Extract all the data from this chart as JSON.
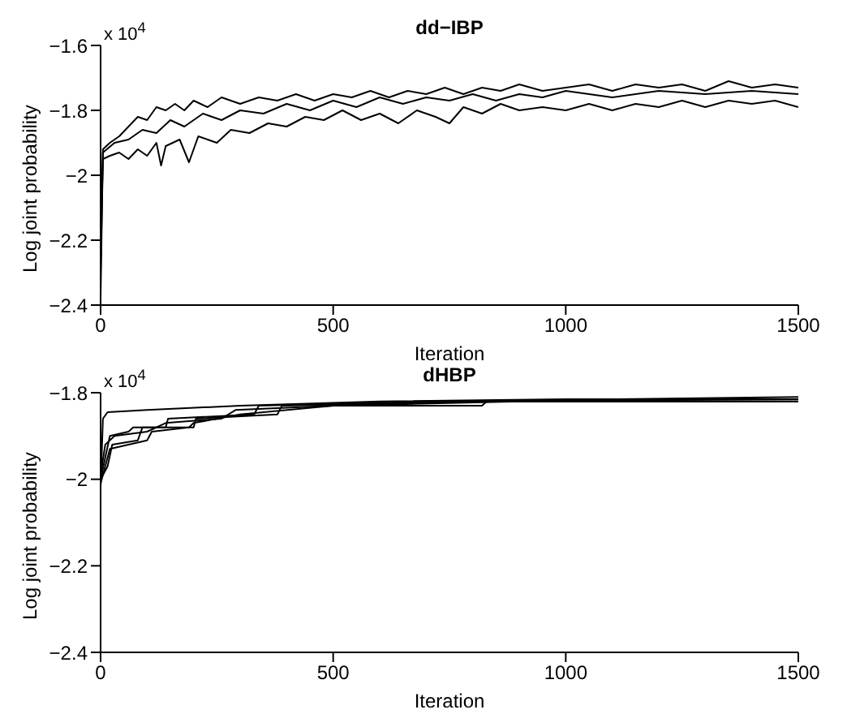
{
  "chart_data": [
    {
      "type": "line",
      "title": "dd−IBP",
      "xlabel": "Iteration",
      "ylabel": "Log joint probability",
      "annotations": [
        "x 10$^{4}$"
      ],
      "xlim": [
        0,
        1500
      ],
      "xticks": [
        0,
        500,
        1000,
        1500
      ],
      "ylim": [
        -2.4,
        -1.6
      ],
      "yticks": [
        -2.4,
        -2.2,
        -2,
        -1.8,
        -1.6
      ],
      "grid": false,
      "marker": "none",
      "line_style": "solid",
      "series": [
        {
          "color": "#000000",
          "x": [
            0,
            5,
            20,
            40,
            60,
            80,
            100,
            120,
            140,
            160,
            180,
            200,
            230,
            260,
            300,
            340,
            380,
            420,
            460,
            500,
            540,
            580,
            620,
            660,
            700,
            740,
            780,
            820,
            860,
            900,
            950,
            1000,
            1050,
            1100,
            1150,
            1200,
            1250,
            1300,
            1350,
            1400,
            1450,
            1500
          ],
          "values": [
            -2.38,
            -1.92,
            -1.9,
            -1.88,
            -1.85,
            -1.82,
            -1.83,
            -1.79,
            -1.8,
            -1.78,
            -1.8,
            -1.77,
            -1.79,
            -1.76,
            -1.78,
            -1.76,
            -1.77,
            -1.75,
            -1.77,
            -1.75,
            -1.76,
            -1.74,
            -1.76,
            -1.74,
            -1.75,
            -1.73,
            -1.75,
            -1.73,
            -1.74,
            -1.72,
            -1.74,
            -1.73,
            -1.72,
            -1.74,
            -1.72,
            -1.73,
            -1.72,
            -1.74,
            -1.71,
            -1.73,
            -1.72,
            -1.73
          ]
        },
        {
          "color": "#000000",
          "x": [
            0,
            5,
            20,
            40,
            60,
            80,
            100,
            120,
            130,
            140,
            170,
            190,
            210,
            250,
            280,
            320,
            360,
            400,
            440,
            480,
            520,
            560,
            600,
            640,
            680,
            720,
            750,
            780,
            820,
            860,
            900,
            950,
            1000,
            1050,
            1100,
            1150,
            1200,
            1250,
            1300,
            1350,
            1400,
            1450,
            1500
          ],
          "values": [
            -2.2,
            -1.95,
            -1.94,
            -1.93,
            -1.95,
            -1.92,
            -1.94,
            -1.9,
            -1.97,
            -1.91,
            -1.89,
            -1.96,
            -1.88,
            -1.9,
            -1.86,
            -1.87,
            -1.84,
            -1.85,
            -1.82,
            -1.83,
            -1.8,
            -1.83,
            -1.81,
            -1.84,
            -1.8,
            -1.82,
            -1.84,
            -1.79,
            -1.81,
            -1.78,
            -1.8,
            -1.79,
            -1.8,
            -1.78,
            -1.8,
            -1.78,
            -1.79,
            -1.77,
            -1.79,
            -1.77,
            -1.78,
            -1.77,
            -1.79
          ]
        },
        {
          "color": "#000000",
          "x": [
            0,
            5,
            30,
            60,
            90,
            120,
            150,
            180,
            220,
            260,
            300,
            350,
            400,
            450,
            500,
            550,
            600,
            650,
            700,
            750,
            800,
            850,
            900,
            950,
            1000,
            1100,
            1200,
            1300,
            1400,
            1500
          ],
          "values": [
            -2.3,
            -1.93,
            -1.9,
            -1.89,
            -1.86,
            -1.87,
            -1.83,
            -1.85,
            -1.81,
            -1.83,
            -1.8,
            -1.81,
            -1.78,
            -1.8,
            -1.77,
            -1.79,
            -1.76,
            -1.78,
            -1.76,
            -1.77,
            -1.75,
            -1.77,
            -1.75,
            -1.76,
            -1.74,
            -1.76,
            -1.74,
            -1.75,
            -1.74,
            -1.75
          ]
        }
      ]
    },
    {
      "type": "line",
      "title": "dHBP",
      "xlabel": "Iteration",
      "ylabel": "Log joint probability",
      "annotations": [
        "x 10$^{4}$"
      ],
      "xlim": [
        0,
        1500
      ],
      "xticks": [
        0,
        500,
        1000,
        1500
      ],
      "ylim": [
        -2.4,
        -1.8
      ],
      "yticks": [
        -2.4,
        -2.2,
        -2,
        -1.8
      ],
      "grid": false,
      "marker": "none",
      "line_style": "solid",
      "series": [
        {
          "color": "#000000",
          "x": [
            0,
            5,
            15,
            100,
            300,
            600,
            1000,
            1500
          ],
          "values": [
            -2.02,
            -1.86,
            -1.845,
            -1.84,
            -1.83,
            -1.82,
            -1.815,
            -1.815
          ]
        },
        {
          "color": "#000000",
          "x": [
            0,
            10,
            20,
            60,
            70,
            140,
            145,
            330,
            340,
            700,
            1500
          ],
          "values": [
            -2,
            -1.95,
            -1.9,
            -1.89,
            -1.88,
            -1.88,
            -1.86,
            -1.85,
            -1.83,
            -1.82,
            -1.81
          ]
        },
        {
          "color": "#000000",
          "x": [
            0,
            15,
            25,
            80,
            90,
            200,
            205,
            380,
            390,
            820,
            1500
          ],
          "values": [
            -2,
            -1.97,
            -1.92,
            -1.91,
            -1.88,
            -1.88,
            -1.86,
            -1.85,
            -1.83,
            -1.82,
            -1.815
          ]
        },
        {
          "color": "#000000",
          "x": [
            0,
            20,
            60,
            100,
            110,
            190,
            200,
            300,
            500,
            820,
            830,
            1500
          ],
          "values": [
            -2.01,
            -1.93,
            -1.92,
            -1.91,
            -1.89,
            -1.88,
            -1.87,
            -1.85,
            -1.83,
            -1.83,
            -1.82,
            -1.82
          ]
        },
        {
          "color": "#000000",
          "x": [
            0,
            10,
            30,
            100,
            140,
            260,
            290,
            500,
            900,
            1500
          ],
          "values": [
            -1.99,
            -1.92,
            -1.9,
            -1.89,
            -1.87,
            -1.86,
            -1.84,
            -1.83,
            -1.82,
            -1.82
          ]
        }
      ]
    }
  ]
}
